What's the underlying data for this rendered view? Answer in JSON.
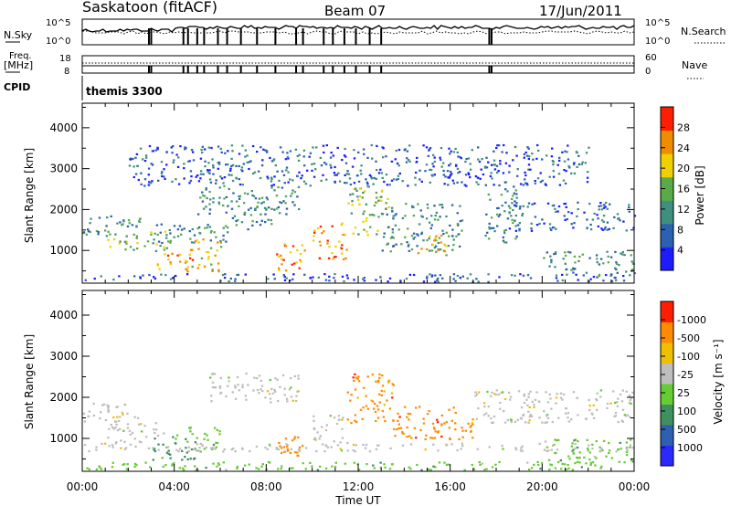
{
  "header": {
    "station": "Saskatoon (fitACF)",
    "beam": "Beam 07",
    "date": "17/Jun/2011"
  },
  "top_panels": {
    "nsky_label": "N.Sky",
    "nsky_ticks": [
      "10^5",
      "10^0"
    ],
    "nsearch_label": "N.Search",
    "nsearch_ticks": [
      "10^5",
      "10^0"
    ],
    "freq_label": "Freq.",
    "freq_unit": "[MHz]",
    "freq_ticks": [
      "18",
      "8"
    ],
    "nave_label": "Nave",
    "nave_ticks": [
      "60",
      "0"
    ],
    "cpid_label": "CPID",
    "cpid_value": "themis 3300"
  },
  "chart_data": [
    {
      "type": "heatmap",
      "ylabel": "Slant Range [km]",
      "xlabel": "Time UT",
      "x_ticks": [
        "00:00",
        "04:00",
        "08:00",
        "12:00",
        "16:00",
        "20:00",
        "00:00"
      ],
      "x_range_hours": [
        0,
        24
      ],
      "y_ticks": [
        1000,
        2000,
        3000,
        4000
      ],
      "ylim": [
        200,
        4600
      ],
      "colorbar": {
        "label": "Power [dB]",
        "ticks": [
          "4",
          "8",
          "12",
          "16",
          "20",
          "24",
          "28"
        ],
        "range": [
          0,
          30
        ],
        "colors": [
          "#1c1cff",
          "#2c60b0",
          "#3f8f7f",
          "#5aaa4a",
          "#f0d000",
          "#f08c00",
          "#ff1e00"
        ]
      },
      "regions": [
        {
          "t": [
            0,
            2.5
          ],
          "r": [
            1400,
            1900
          ],
          "v": 8
        },
        {
          "t": [
            1.0,
            3.8
          ],
          "r": [
            1000,
            1500
          ],
          "v": 14
        },
        {
          "t": [
            3.2,
            4.8
          ],
          "r": [
            500,
            1000
          ],
          "v": 26
        },
        {
          "t": [
            4.5,
            6.0
          ],
          "r": [
            500,
            1300
          ],
          "v": 18
        },
        {
          "t": [
            3.0,
            6.5
          ],
          "r": [
            1200,
            1700
          ],
          "v": 12
        },
        {
          "t": [
            5.0,
            9.5
          ],
          "r": [
            1900,
            2600
          ],
          "v": 12
        },
        {
          "t": [
            6.5,
            8.3
          ],
          "r": [
            1500,
            2100
          ],
          "v": 8
        },
        {
          "t": [
            8.4,
            9.7
          ],
          "r": [
            500,
            1200
          ],
          "v": 27
        },
        {
          "t": [
            10.0,
            11.5
          ],
          "r": [
            800,
            1700
          ],
          "v": 24
        },
        {
          "t": [
            11.5,
            13.3
          ],
          "r": [
            1400,
            2600
          ],
          "v": 14
        },
        {
          "t": [
            13.0,
            16.5
          ],
          "r": [
            1000,
            2200
          ],
          "v": 10
        },
        {
          "t": [
            14.5,
            16.0
          ],
          "r": [
            900,
            1400
          ],
          "v": 22
        },
        {
          "t": [
            17.5,
            19.0
          ],
          "r": [
            1200,
            2600
          ],
          "v": 8
        },
        {
          "t": [
            18.5,
            24.0
          ],
          "r": [
            1500,
            2200
          ],
          "v": 6
        },
        {
          "t": [
            20.0,
            24.0
          ],
          "r": [
            400,
            1000
          ],
          "v": 8
        },
        {
          "t": [
            0,
            24.0
          ],
          "r": [
            250,
            450
          ],
          "v": 6
        },
        {
          "t": [
            2.0,
            22.0
          ],
          "r": [
            2600,
            3600
          ],
          "v": 6
        }
      ]
    },
    {
      "type": "heatmap",
      "ylabel": "Slant Range [km]",
      "xlabel": "Time UT",
      "x_ticks": [
        "00:00",
        "04:00",
        "08:00",
        "12:00",
        "16:00",
        "20:00",
        "00:00"
      ],
      "x_range_hours": [
        0,
        24
      ],
      "y_ticks": [
        1000,
        2000,
        3000,
        4000
      ],
      "ylim": [
        200,
        4600
      ],
      "colorbar": {
        "label": "Velocity [m s⁻¹]",
        "ticks": [
          "1000",
          "500",
          "100",
          "25",
          "-25",
          "-100",
          "-500",
          "-1000"
        ],
        "colors": [
          "#2a2aff",
          "#2c60b0",
          "#3f8f5f",
          "#66cc33",
          "#bebebe",
          "#f0c000",
          "#ff8c00",
          "#ff1e00"
        ]
      },
      "regions": [
        {
          "t": [
            0,
            2.5
          ],
          "r": [
            1400,
            1900
          ],
          "v": 4
        },
        {
          "t": [
            1.0,
            3.5
          ],
          "r": [
            900,
            1400
          ],
          "v": 4
        },
        {
          "t": [
            3.0,
            5.0
          ],
          "r": [
            500,
            1100
          ],
          "v": 2
        },
        {
          "t": [
            4.5,
            6.0
          ],
          "r": [
            700,
            1300
          ],
          "v": 3
        },
        {
          "t": [
            5.5,
            9.5
          ],
          "r": [
            1900,
            2600
          ],
          "v": 4
        },
        {
          "t": [
            8.5,
            9.7
          ],
          "r": [
            500,
            1200
          ],
          "v": 6
        },
        {
          "t": [
            10.0,
            11.5
          ],
          "r": [
            900,
            1600
          ],
          "v": 4
        },
        {
          "t": [
            11.5,
            13.5
          ],
          "r": [
            1400,
            2600
          ],
          "v": 6
        },
        {
          "t": [
            13.5,
            17.0
          ],
          "r": [
            1000,
            1800
          ],
          "v": 6
        },
        {
          "t": [
            17.0,
            24.0
          ],
          "r": [
            1400,
            2200
          ],
          "v": 4
        },
        {
          "t": [
            20.0,
            24.0
          ],
          "r": [
            400,
            1000
          ],
          "v": 3
        },
        {
          "t": [
            0,
            24.0
          ],
          "r": [
            250,
            450
          ],
          "v": 3
        },
        {
          "t": [
            0,
            24.0
          ],
          "r": [
            700,
            900
          ],
          "v": 4
        }
      ]
    }
  ]
}
